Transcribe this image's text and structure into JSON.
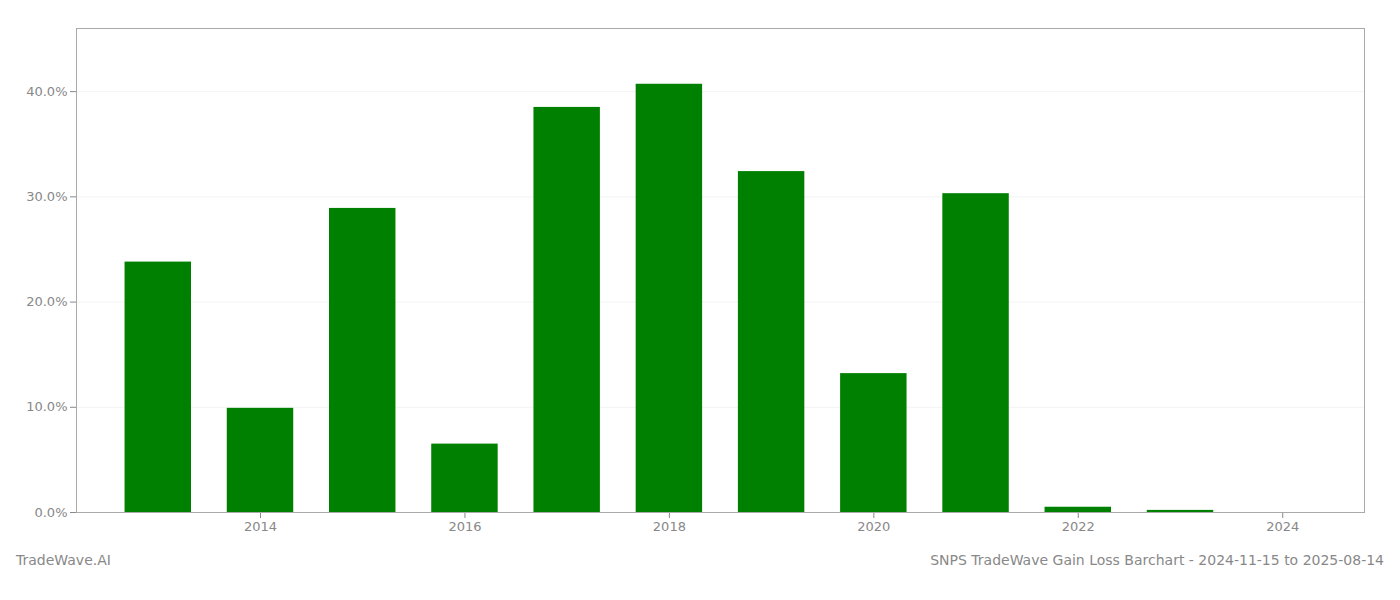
{
  "chart_data": {
    "type": "bar",
    "x": [
      2013,
      2014,
      2015,
      2016,
      2017,
      2018,
      2019,
      2020,
      2021,
      2022,
      2023
    ],
    "values": [
      0.238,
      0.099,
      0.289,
      0.065,
      0.385,
      0.407,
      0.324,
      0.132,
      0.303,
      0.005,
      0.002
    ],
    "color": "#008000",
    "xlim": [
      2012.2,
      2024.8
    ],
    "xticks": [
      2014,
      2016,
      2018,
      2020,
      2022,
      2024
    ],
    "ylim": [
      0,
      0.46
    ],
    "yticks": [
      {
        "value": 0.0,
        "label": "0.0%"
      },
      {
        "value": 0.1,
        "label": "10.0%"
      },
      {
        "value": 0.2,
        "label": "20.0%"
      },
      {
        "value": 0.3,
        "label": "30.0%"
      },
      {
        "value": 0.4,
        "label": "40.0%"
      }
    ],
    "grid": true,
    "annotations": [
      "TradeWave.AI",
      "SNPS TradeWave Gain Loss Barchart - 2024-11-15 to 2025-08-14"
    ]
  }
}
